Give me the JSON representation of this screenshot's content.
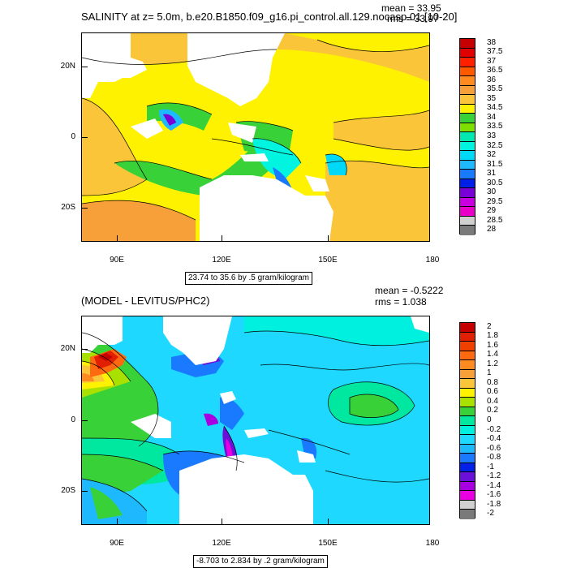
{
  "panel1": {
    "title": "SALINITY at z=   5.0m, b.e20.B1850.f09_g16.pi_control.all.129.nocasp.01 [10-20]",
    "mean_label": "mean = 33.95",
    "rms_label": "rms = 33.97",
    "range_label": "23.74 to 35.6 by .5 gram/kilogram",
    "ylabels": [
      "20N",
      "0",
      "20S"
    ],
    "xlabels": [
      "90E",
      "120E",
      "150E",
      "180"
    ],
    "colorbar_labels": [
      "38",
      "37.5",
      "37",
      "36.5",
      "36",
      "35.5",
      "35",
      "34.5",
      "34",
      "33.5",
      "33",
      "32.5",
      "32",
      "31.5",
      "31",
      "30.5",
      "30",
      "29.5",
      "29",
      "28.5",
      "28"
    ],
    "colorbar_colors": [
      "#c40000",
      "#e00000",
      "#ff2000",
      "#ff5a00",
      "#ff8a20",
      "#f7a03a",
      "#fbc53a",
      "#fff200",
      "#38d238",
      "#7de000",
      "#00e8b0",
      "#00f4e0",
      "#00d8f8",
      "#1eb8ff",
      "#1a7aff",
      "#0020e8",
      "#7a00d8",
      "#c800e0",
      "#e800c8",
      "#d0d0d0",
      "#7a7a7a"
    ]
  },
  "panel2": {
    "title": "(MODEL - LEVITUS/PHC2)",
    "mean_label": "mean = -0.5222",
    "rms_label": "rms = 1.038",
    "range_label": "-8.703 to 2.834 by .2 gram/kilogram",
    "ylabels": [
      "20N",
      "0",
      "20S"
    ],
    "xlabels": [
      "90E",
      "120E",
      "150E",
      "180"
    ],
    "colorbar_labels": [
      "2",
      "1.8",
      "1.6",
      "1.4",
      "1.2",
      "1",
      "0.8",
      "0.6",
      "0.4",
      "0.2",
      "0",
      "-0.2",
      "-0.4",
      "-0.6",
      "-0.8",
      "-1",
      "-1.2",
      "-1.4",
      "-1.6",
      "-1.8",
      "-2"
    ],
    "colorbar_colors": [
      "#c40000",
      "#e02000",
      "#f04000",
      "#ff6a10",
      "#ff8a20",
      "#f7a03a",
      "#fbc53a",
      "#fff200",
      "#a8e000",
      "#38d238",
      "#00e8a0",
      "#00f0e0",
      "#1ed8ff",
      "#1eb8ff",
      "#1a7aff",
      "#0020e8",
      "#6a10d8",
      "#a800e0",
      "#e800e0",
      "#d0d0d0",
      "#7a7a7a"
    ]
  }
}
